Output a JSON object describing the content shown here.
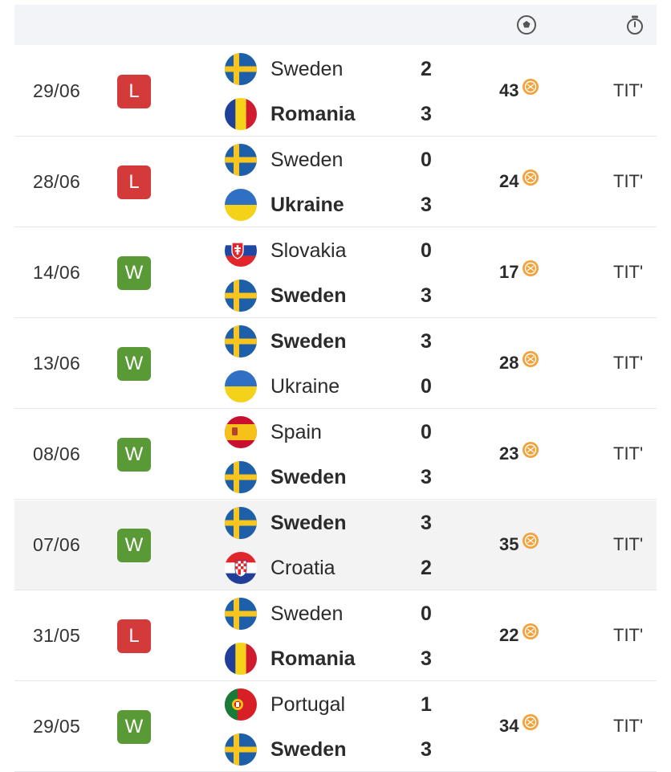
{
  "header": {
    "icons": [
      "soccer-ball-icon",
      "stopwatch-icon"
    ]
  },
  "colors": {
    "loss": "#d33a3a",
    "win": "#5a9a36",
    "coin": "#f2a23a"
  },
  "matches": [
    {
      "date": "29/06",
      "result": "L",
      "home": {
        "name": "Sweden",
        "flag": "sweden",
        "score": "2",
        "bold": false
      },
      "away": {
        "name": "Romania",
        "flag": "romania",
        "score": "3",
        "bold": true
      },
      "points": "43",
      "status": "TIT'",
      "highlighted": false
    },
    {
      "date": "28/06",
      "result": "L",
      "home": {
        "name": "Sweden",
        "flag": "sweden",
        "score": "0",
        "bold": false
      },
      "away": {
        "name": "Ukraine",
        "flag": "ukraine",
        "score": "3",
        "bold": true
      },
      "points": "24",
      "status": "TIT'",
      "highlighted": false
    },
    {
      "date": "14/06",
      "result": "W",
      "home": {
        "name": "Slovakia",
        "flag": "slovakia",
        "score": "0",
        "bold": false
      },
      "away": {
        "name": "Sweden",
        "flag": "sweden",
        "score": "3",
        "bold": true
      },
      "points": "17",
      "status": "TIT'",
      "highlighted": false
    },
    {
      "date": "13/06",
      "result": "W",
      "home": {
        "name": "Sweden",
        "flag": "sweden",
        "score": "3",
        "bold": true
      },
      "away": {
        "name": "Ukraine",
        "flag": "ukraine",
        "score": "0",
        "bold": false
      },
      "points": "28",
      "status": "TIT'",
      "highlighted": false
    },
    {
      "date": "08/06",
      "result": "W",
      "home": {
        "name": "Spain",
        "flag": "spain",
        "score": "0",
        "bold": false
      },
      "away": {
        "name": "Sweden",
        "flag": "sweden",
        "score": "3",
        "bold": true
      },
      "points": "23",
      "status": "TIT'",
      "highlighted": false
    },
    {
      "date": "07/06",
      "result": "W",
      "home": {
        "name": "Sweden",
        "flag": "sweden",
        "score": "3",
        "bold": true
      },
      "away": {
        "name": "Croatia",
        "flag": "croatia",
        "score": "2",
        "bold": false
      },
      "points": "35",
      "status": "TIT'",
      "highlighted": true
    },
    {
      "date": "31/05",
      "result": "L",
      "home": {
        "name": "Sweden",
        "flag": "sweden",
        "score": "0",
        "bold": false
      },
      "away": {
        "name": "Romania",
        "flag": "romania",
        "score": "3",
        "bold": true
      },
      "points": "22",
      "status": "TIT'",
      "highlighted": false
    },
    {
      "date": "29/05",
      "result": "W",
      "home": {
        "name": "Portugal",
        "flag": "portugal",
        "score": "1",
        "bold": false
      },
      "away": {
        "name": "Sweden",
        "flag": "sweden",
        "score": "3",
        "bold": true
      },
      "points": "34",
      "status": "TIT'",
      "highlighted": false
    }
  ]
}
